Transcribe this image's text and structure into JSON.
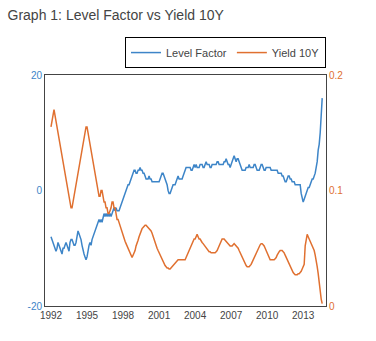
{
  "chart_data": {
    "type": "line",
    "title": "Graph 1: Level Factor vs Yield 10Y",
    "x": [
      1992,
      1992.0833,
      1992.1667,
      1992.25,
      1992.3333,
      1992.4167,
      1992.5,
      1992.5833,
      1992.6667,
      1992.75,
      1992.8333,
      1992.9167,
      1993,
      1993.0833,
      1993.1667,
      1993.25,
      1993.3333,
      1993.4167,
      1993.5,
      1993.5833,
      1993.6667,
      1993.75,
      1993.8333,
      1993.9167,
      1994,
      1994.0833,
      1994.1667,
      1994.25,
      1994.3333,
      1994.4167,
      1994.5,
      1994.5833,
      1994.6667,
      1994.75,
      1994.8333,
      1994.9167,
      1995,
      1995.0833,
      1995.1667,
      1995.25,
      1995.3333,
      1995.4167,
      1995.5,
      1995.5833,
      1995.6667,
      1995.75,
      1995.8333,
      1995.9167,
      1996,
      1996.0833,
      1996.1667,
      1996.25,
      1996.3333,
      1996.4167,
      1996.5,
      1996.5833,
      1996.6667,
      1996.75,
      1996.8333,
      1996.9167,
      1997,
      1997.0833,
      1997.1667,
      1997.25,
      1997.3333,
      1997.4167,
      1997.5,
      1997.5833,
      1997.6667,
      1997.75,
      1997.8333,
      1997.9167,
      1998,
      1998.0833,
      1998.1667,
      1998.25,
      1998.3333,
      1998.4167,
      1998.5,
      1998.5833,
      1998.6667,
      1998.75,
      1998.8333,
      1998.9167,
      1999,
      1999.0833,
      1999.1667,
      1999.25,
      1999.3333,
      1999.4167,
      1999.5,
      1999.5833,
      1999.6667,
      1999.75,
      1999.8333,
      1999.9167,
      2000,
      2000.0833,
      2000.1667,
      2000.25,
      2000.3333,
      2000.4167,
      2000.5,
      2000.5833,
      2000.6667,
      2000.75,
      2000.8333,
      2000.9167,
      2001,
      2001.0833,
      2001.1667,
      2001.25,
      2001.3333,
      2001.4167,
      2001.5,
      2001.5833,
      2001.6667,
      2001.75,
      2001.8333,
      2001.9167,
      2002,
      2002.0833,
      2002.1667,
      2002.25,
      2002.3333,
      2002.4167,
      2002.5,
      2002.5833,
      2002.6667,
      2002.75,
      2002.8333,
      2002.9167,
      2003,
      2003.0833,
      2003.1667,
      2003.25,
      2003.3333,
      2003.4167,
      2003.5,
      2003.5833,
      2003.6667,
      2003.75,
      2003.8333,
      2003.9167,
      2004,
      2004.0833,
      2004.1667,
      2004.25,
      2004.3333,
      2004.4167,
      2004.5,
      2004.5833,
      2004.6667,
      2004.75,
      2004.8333,
      2004.9167,
      2005,
      2005.0833,
      2005.1667,
      2005.25,
      2005.3333,
      2005.4167,
      2005.5,
      2005.5833,
      2005.6667,
      2005.75,
      2005.8333,
      2005.9167,
      2006,
      2006.0833,
      2006.1667,
      2006.25,
      2006.3333,
      2006.4167,
      2006.5,
      2006.5833,
      2006.6667,
      2006.75,
      2006.8333,
      2006.9167,
      2007,
      2007.0833,
      2007.1667,
      2007.25,
      2007.3333,
      2007.4167,
      2007.5,
      2007.5833,
      2007.6667,
      2007.75,
      2007.8333,
      2007.9167,
      2008,
      2008.0833,
      2008.1667,
      2008.25,
      2008.3333,
      2008.4167,
      2008.5,
      2008.5833,
      2008.6667,
      2008.75,
      2008.8333,
      2008.9167,
      2009,
      2009.0833,
      2009.1667,
      2009.25,
      2009.3333,
      2009.4167,
      2009.5,
      2009.5833,
      2009.6667,
      2009.75,
      2009.8333,
      2009.9167,
      2010,
      2010.0833,
      2010.1667,
      2010.25,
      2010.3333,
      2010.4167,
      2010.5,
      2010.5833,
      2010.6667,
      2010.75,
      2010.8333,
      2010.9167,
      2011,
      2011.0833,
      2011.1667,
      2011.25,
      2011.3333,
      2011.4167,
      2011.5,
      2011.5833,
      2011.6667,
      2011.75,
      2011.8333,
      2011.9167,
      2012,
      2012.0833,
      2012.1667,
      2012.25,
      2012.3333,
      2012.4167,
      2012.5,
      2012.5833,
      2012.6667,
      2012.75,
      2012.8333,
      2012.9167,
      2013,
      2013.0833,
      2013.1667,
      2013.25,
      2013.3333,
      2013.4167,
      2013.5,
      2013.5833,
      2013.6667,
      2013.75,
      2013.8333,
      2013.9167,
      2014,
      2014.0833,
      2014.1667,
      2014.25,
      2014.3333,
      2014.4167,
      2014.5,
      2014.5833
    ],
    "xlim": [
      1991.5,
      2014.9
    ],
    "xticks": [
      1992,
      1995,
      1998,
      2001,
      2004,
      2007,
      2010,
      2013
    ],
    "ylim": [
      -20,
      20
    ],
    "yticks": [
      -20,
      0,
      20
    ],
    "y2lim": [
      0,
      0.2
    ],
    "y2ticks": [
      0,
      0.1,
      0.2
    ],
    "grid": false,
    "legend": "upper right",
    "series": [
      {
        "name": "Level Factor",
        "color": "#3d85c8",
        "axis": "y",
        "values": [
          -8,
          -8.5,
          -9,
          -9.5,
          -10,
          -10.5,
          -10,
          -9,
          -9.5,
          -10,
          -10.5,
          -11,
          -10,
          -10,
          -9.5,
          -9,
          -9.5,
          -10,
          -10.5,
          -9,
          -8.5,
          -8.5,
          -9,
          -9.5,
          -9.5,
          -9,
          -8,
          -7,
          -7.5,
          -8,
          -8.5,
          -9.5,
          -10.5,
          -11,
          -11.5,
          -12,
          -11.5,
          -10,
          -9.5,
          -9,
          -9.5,
          -8.5,
          -8,
          -7.5,
          -7,
          -6.5,
          -6,
          -5.5,
          -5,
          -5.5,
          -5,
          -5.5,
          -4.5,
          -4,
          -4.5,
          -4,
          -4.5,
          -4,
          -4.5,
          -4,
          -4.5,
          -4,
          -3.5,
          -3,
          -3.5,
          -3,
          -3.5,
          -3.5,
          -3.5,
          -3,
          -2.5,
          -2,
          -1.5,
          -1,
          -0.5,
          0,
          0.5,
          1,
          1,
          1.5,
          2,
          2.5,
          3,
          3.5,
          3.5,
          3,
          3,
          3.5,
          3.5,
          4,
          3.5,
          3.5,
          3,
          3,
          2.5,
          2,
          2,
          2,
          2.5,
          2,
          2,
          1.5,
          1.5,
          1.5,
          1.5,
          1.5,
          1.5,
          1.5,
          1.5,
          2,
          2.5,
          3,
          3,
          2.5,
          2,
          1.5,
          1,
          0,
          -0.5,
          -0.5,
          0,
          0.5,
          1,
          1,
          1,
          1.5,
          2,
          2.5,
          2,
          2,
          2,
          2,
          2.5,
          3,
          3.5,
          4,
          4,
          4,
          4,
          4,
          3.5,
          3.5,
          4,
          4.5,
          4,
          4.5,
          4,
          4,
          4,
          4.5,
          4.5,
          4.5,
          4,
          4,
          4.5,
          5,
          4.5,
          4.5,
          4.5,
          4,
          4,
          4.5,
          4.5,
          4.5,
          4.5,
          4.5,
          5,
          5,
          4.5,
          4.5,
          4.5,
          4.5,
          4.5,
          5,
          5,
          5.5,
          5,
          4.5,
          4.5,
          4,
          4.5,
          5,
          5.5,
          6,
          5.5,
          5,
          5.5,
          5.5,
          5,
          4.5,
          4,
          3.5,
          3.5,
          3.5,
          3.5,
          4,
          4,
          4,
          4.5,
          4,
          4,
          4,
          4,
          4.5,
          4.5,
          4,
          3.5,
          3.5,
          3.5,
          4,
          4.5,
          4.5,
          4,
          3.5,
          3.5,
          4,
          4,
          4,
          4,
          4,
          3.5,
          3.5,
          3.5,
          3.5,
          3.5,
          3.5,
          3.5,
          3,
          3,
          3,
          3,
          2.5,
          2.5,
          2,
          1.5,
          1.5,
          2,
          2.5,
          2.5,
          2,
          2,
          1.5,
          1.5,
          1.5,
          1,
          1,
          1,
          1,
          1,
          1,
          -0.5,
          -1.5,
          -2,
          -1.5,
          -1,
          -0.5,
          0,
          0.5,
          0.5,
          1,
          1.5,
          2,
          2,
          2.5,
          3,
          4,
          5,
          7,
          8,
          10,
          13,
          16
        ]
      },
      {
        "name": "Yield 10Y",
        "color": "#e07030",
        "axis": "y2",
        "values": [
          0.155,
          0.16,
          0.165,
          0.17,
          0.165,
          0.16,
          0.155,
          0.15,
          0.145,
          0.14,
          0.135,
          0.13,
          0.125,
          0.12,
          0.115,
          0.11,
          0.105,
          0.1,
          0.095,
          0.09,
          0.085,
          0.085,
          0.09,
          0.095,
          0.1,
          0.105,
          0.11,
          0.115,
          0.12,
          0.125,
          0.13,
          0.135,
          0.14,
          0.145,
          0.15,
          0.155,
          0.155,
          0.15,
          0.145,
          0.14,
          0.135,
          0.13,
          0.125,
          0.12,
          0.115,
          0.11,
          0.105,
          0.1,
          0.095,
          0.095,
          0.1,
          0.1,
          0.095,
          0.09,
          0.09,
          0.085,
          0.085,
          0.08,
          0.08,
          0.082,
          0.085,
          0.09,
          0.09,
          0.085,
          0.085,
          0.08,
          0.075,
          0.075,
          0.072,
          0.07,
          0.068,
          0.065,
          0.06,
          0.058,
          0.056,
          0.054,
          0.052,
          0.05,
          0.048,
          0.045,
          0.043,
          0.042,
          0.044,
          0.046,
          0.048,
          0.052,
          0.054,
          0.057,
          0.06,
          0.063,
          0.065,
          0.067,
          0.068,
          0.069,
          0.07,
          0.07,
          0.069,
          0.068,
          0.067,
          0.066,
          0.065,
          0.063,
          0.06,
          0.058,
          0.055,
          0.053,
          0.05,
          0.048,
          0.046,
          0.044,
          0.042,
          0.04,
          0.038,
          0.036,
          0.035,
          0.034,
          0.033,
          0.033,
          0.032,
          0.032,
          0.033,
          0.034,
          0.035,
          0.036,
          0.037,
          0.038,
          0.039,
          0.04,
          0.04,
          0.04,
          0.04,
          0.04,
          0.04,
          0.04,
          0.04,
          0.042,
          0.044,
          0.046,
          0.048,
          0.05,
          0.052,
          0.054,
          0.056,
          0.058,
          0.058,
          0.06,
          0.062,
          0.06,
          0.058,
          0.058,
          0.056,
          0.055,
          0.054,
          0.053,
          0.052,
          0.05,
          0.049,
          0.048,
          0.047,
          0.047,
          0.046,
          0.046,
          0.046,
          0.046,
          0.046,
          0.047,
          0.048,
          0.05,
          0.052,
          0.054,
          0.056,
          0.058,
          0.058,
          0.058,
          0.057,
          0.056,
          0.055,
          0.054,
          0.053,
          0.052,
          0.052,
          0.052,
          0.053,
          0.054,
          0.053,
          0.052,
          0.051,
          0.05,
          0.048,
          0.046,
          0.044,
          0.042,
          0.04,
          0.038,
          0.036,
          0.035,
          0.034,
          0.034,
          0.034,
          0.035,
          0.036,
          0.038,
          0.04,
          0.042,
          0.044,
          0.046,
          0.048,
          0.05,
          0.052,
          0.053,
          0.054,
          0.054,
          0.053,
          0.052,
          0.05,
          0.048,
          0.046,
          0.044,
          0.042,
          0.04,
          0.04,
          0.04,
          0.04,
          0.04,
          0.041,
          0.042,
          0.044,
          0.046,
          0.047,
          0.048,
          0.048,
          0.048,
          0.047,
          0.046,
          0.044,
          0.042,
          0.04,
          0.038,
          0.036,
          0.034,
          0.032,
          0.03,
          0.029,
          0.028,
          0.027,
          0.027,
          0.027,
          0.028,
          0.028,
          0.029,
          0.03,
          0.032,
          0.034,
          0.036,
          0.052,
          0.06,
          0.062,
          0.06,
          0.058,
          0.056,
          0.054,
          0.052,
          0.05,
          0.048,
          0.044,
          0.04,
          0.034,
          0.028,
          0.02,
          0.012,
          0.006,
          0.002
        ]
      }
    ]
  }
}
